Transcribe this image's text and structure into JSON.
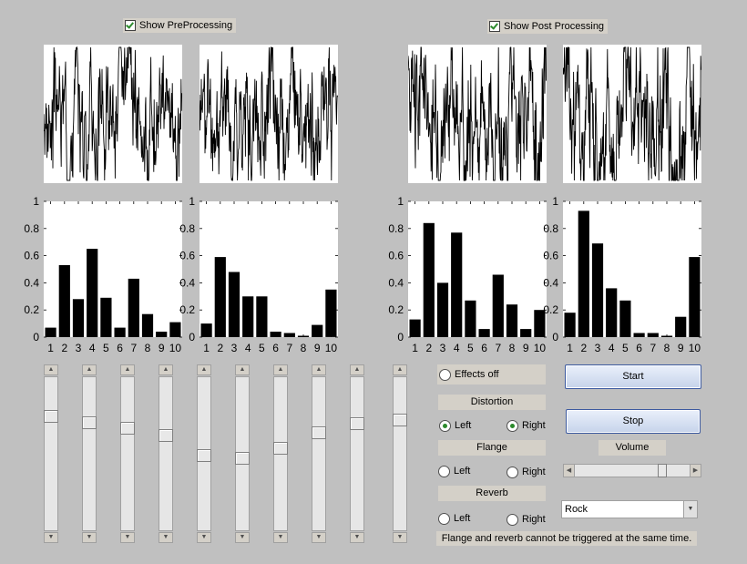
{
  "checkboxes": {
    "pre": {
      "label": "Show PreProcessing",
      "checked": true
    },
    "post": {
      "label": "Show Post Processing",
      "checked": true
    }
  },
  "bar_axis": {
    "yticks": [
      "0",
      "0.2",
      "0.4",
      "0.6",
      "0.8",
      "1"
    ],
    "xticks": [
      "1",
      "2",
      "3",
      "4",
      "5",
      "6",
      "7",
      "8",
      "9",
      "10"
    ]
  },
  "chart_data": [
    {
      "type": "line",
      "title": "",
      "seed": 3,
      "amplitude": 0.75
    },
    {
      "type": "line",
      "title": "",
      "seed": 11,
      "amplitude": 0.75
    },
    {
      "type": "line",
      "title": "",
      "seed": 23,
      "amplitude": 0.95
    },
    {
      "type": "line",
      "title": "",
      "seed": 37,
      "amplitude": 0.95
    },
    {
      "type": "bar",
      "categories": [
        "1",
        "2",
        "3",
        "4",
        "5",
        "6",
        "7",
        "8",
        "9",
        "10"
      ],
      "values": [
        0.07,
        0.53,
        0.28,
        0.65,
        0.29,
        0.07,
        0.43,
        0.17,
        0.04,
        0.11
      ],
      "ylim": [
        0,
        1
      ]
    },
    {
      "type": "bar",
      "categories": [
        "1",
        "2",
        "3",
        "4",
        "5",
        "6",
        "7",
        "8",
        "9",
        "10"
      ],
      "values": [
        0.1,
        0.59,
        0.48,
        0.3,
        0.3,
        0.04,
        0.03,
        0.01,
        0.09,
        0.35
      ],
      "ylim": [
        0,
        1
      ]
    },
    {
      "type": "bar",
      "categories": [
        "1",
        "2",
        "3",
        "4",
        "5",
        "6",
        "7",
        "8",
        "9",
        "10"
      ],
      "values": [
        0.13,
        0.84,
        0.4,
        0.77,
        0.27,
        0.06,
        0.46,
        0.24,
        0.06,
        0.2
      ],
      "ylim": [
        0,
        1
      ]
    },
    {
      "type": "bar",
      "categories": [
        "1",
        "2",
        "3",
        "4",
        "5",
        "6",
        "7",
        "8",
        "9",
        "10"
      ],
      "values": [
        0.18,
        0.93,
        0.69,
        0.36,
        0.27,
        0.03,
        0.03,
        0.01,
        0.15,
        0.59
      ],
      "ylim": [
        0,
        1
      ]
    }
  ],
  "equalizer": {
    "levels": [
      0.76,
      0.72,
      0.68,
      0.63,
      0.49,
      0.47,
      0.54,
      0.65,
      0.71,
      0.74
    ]
  },
  "effects": {
    "off_label": "Effects off",
    "distortion": {
      "title": "Distortion",
      "left": "Left",
      "right": "Right",
      "left_on": true,
      "right_on": true
    },
    "flange": {
      "title": "Flange",
      "left": "Left",
      "right": "Right",
      "left_on": false,
      "right_on": false
    },
    "reverb": {
      "title": "Reverb",
      "left": "Left",
      "right": "Right",
      "left_on": false,
      "right_on": false
    }
  },
  "controls": {
    "start_label": "Start",
    "stop_label": "Stop",
    "volume_label": "Volume",
    "volume_level": 0.78,
    "preset": "Rock"
  },
  "note": "Flange and reverb cannot be triggered at the same time.",
  "colors": {
    "background": "#c0c0c0",
    "accent": "#2c8a2c",
    "plot_bg": "#ffffff"
  }
}
